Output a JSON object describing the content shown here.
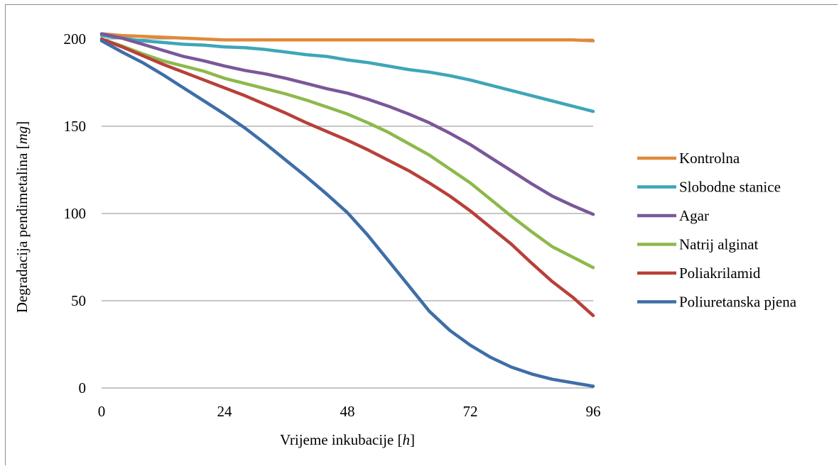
{
  "chart_data": {
    "type": "line",
    "title": "",
    "xlabel_text": "Vrijeme inkubacije [",
    "xlabel_unit": "h",
    "xlabel_close": "]",
    "ylabel_text": "Degradacija pendimetalina [",
    "ylabel_unit": "mg",
    "ylabel_close": "]",
    "xlim": [
      0,
      96
    ],
    "ylim": [
      0,
      200
    ],
    "xticks": [
      0,
      24,
      48,
      72,
      96
    ],
    "yticks": [
      0,
      50,
      100,
      150,
      200
    ],
    "grid": "horizontal",
    "legend_position": "right",
    "x": [
      0,
      4,
      8,
      12,
      16,
      20,
      24,
      28,
      32,
      36,
      40,
      44,
      48,
      52,
      56,
      60,
      64,
      68,
      72,
      76,
      80,
      84,
      88,
      92,
      96
    ],
    "series": [
      {
        "name": "Kontrolna",
        "color": "#E0893A",
        "values": [
          203,
          202,
          201.5,
          201,
          200.5,
          200,
          199.5,
          199.5,
          199.5,
          199.5,
          199.5,
          199.5,
          199.5,
          199.5,
          199.5,
          199.5,
          199.5,
          199.5,
          199.5,
          199.5,
          199.5,
          199.5,
          199.5,
          199.5,
          199
        ]
      },
      {
        "name": "Slobodne stanice",
        "color": "#3EA6B8",
        "values": [
          202,
          200.5,
          199,
          198,
          197,
          196.5,
          195.5,
          195,
          194,
          192.5,
          191,
          190,
          188,
          186.5,
          184.5,
          182.5,
          181,
          179,
          176.5,
          173.5,
          170.5,
          167.5,
          164.5,
          161.5,
          158.5
        ]
      },
      {
        "name": "Agar",
        "color": "#7B5799",
        "values": [
          203,
          200.5,
          197,
          193.5,
          190,
          187.5,
          184.5,
          182,
          180,
          177.5,
          174.5,
          171.5,
          169,
          165.5,
          161.5,
          157,
          152,
          146,
          139.5,
          132,
          124.5,
          117,
          110,
          104.5,
          99.5
        ]
      },
      {
        "name": "Natrij alginat",
        "color": "#8DB94B",
        "values": [
          200,
          196,
          191.5,
          187.5,
          184.5,
          181.5,
          177.5,
          174.5,
          171.5,
          168.5,
          165,
          161,
          157,
          152,
          146.5,
          140,
          133.5,
          125.5,
          117.5,
          108,
          98.5,
          89.5,
          81,
          75,
          69
        ]
      },
      {
        "name": "Poliakrilamid",
        "color": "#B8403A",
        "values": [
          200,
          195.5,
          190.5,
          185.5,
          181,
          176.5,
          172,
          167.5,
          162.5,
          157.5,
          152,
          147,
          142,
          136.5,
          130.5,
          124.5,
          117.5,
          110,
          101.5,
          92,
          82.5,
          71.5,
          61,
          52,
          41.5
        ]
      },
      {
        "name": "Poliuretanska pjena",
        "color": "#3E6EA8",
        "values": [
          199,
          192.5,
          186.5,
          179.5,
          172,
          164.5,
          157,
          149,
          140,
          130.5,
          121,
          111,
          100.5,
          87.5,
          73,
          58.5,
          44,
          33,
          24.5,
          17.5,
          12,
          8,
          5,
          3,
          1
        ]
      }
    ]
  }
}
